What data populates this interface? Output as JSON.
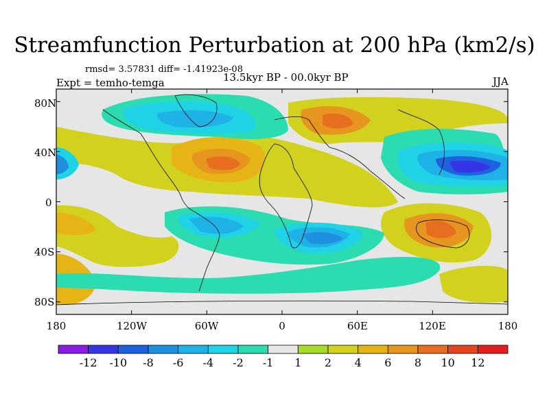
{
  "title": "Streamfunction Perturbation at 200 hPa (km2/s)",
  "stats": "rmsd= 3.57831 diff= -1.41923e-08",
  "experiment": "Expt = temho-temga",
  "period": "13.5kyr BP - 00.0kyr BP",
  "season": "JJA",
  "map": {
    "lat_ticks": [
      "80N",
      "40N",
      "0",
      "40S",
      "80S"
    ],
    "lon_ticks": [
      "180",
      "120W",
      "60W",
      "0",
      "60E",
      "120E",
      "180"
    ],
    "background_color": "#e6e6e6"
  },
  "colorbar": {
    "labels": [
      "-12",
      "-10",
      "-8",
      "-6",
      "-4",
      "-2",
      "-1",
      "1",
      "2",
      "4",
      "6",
      "8",
      "10",
      "12"
    ],
    "colors": [
      "#8a1be6",
      "#3535e6",
      "#1f62e0",
      "#1f8fe0",
      "#1fb2e6",
      "#1fd2e6",
      "#2bdcb0",
      "#e6e6e6",
      "#a6dc28",
      "#d2d21e",
      "#e6b414",
      "#e6961e",
      "#e66e1e",
      "#e6461e",
      "#e61e1e"
    ]
  },
  "chart_data": {
    "type": "heatmap",
    "title": "Streamfunction Perturbation at 200 hPa (km2/s)",
    "units": "km2/s",
    "projection": "cylindrical equidistant",
    "xlabel": "",
    "ylabel": "",
    "xlim": [
      -180,
      180
    ],
    "ylim": [
      -90,
      90
    ],
    "x_ticks": [
      -180,
      -120,
      -60,
      0,
      60,
      120,
      180
    ],
    "y_ticks": [
      80,
      40,
      0,
      -40,
      -80
    ],
    "contour_levels": [
      -12,
      -10,
      -8,
      -6,
      -4,
      -2,
      -1,
      1,
      2,
      4,
      6,
      8,
      10,
      12
    ],
    "rmsd": 3.57831,
    "diff": -1.41923e-08,
    "features": [
      {
        "region": "North Atlantic / Greenland",
        "sign": "negative",
        "approx_min": -6
      },
      {
        "region": "North Pacific (~35N, 160E)",
        "sign": "negative",
        "approx_min": -12
      },
      {
        "region": "North Atlantic subtropics / North Africa",
        "sign": "positive",
        "approx_max": 8
      },
      {
        "region": "Siberia / Northern Eurasia",
        "sign": "positive",
        "approx_max": 8
      },
      {
        "region": "Australia",
        "sign": "positive",
        "approx_max": 8
      },
      {
        "region": "South Atlantic / Southern Africa",
        "sign": "negative",
        "approx_min": -8
      },
      {
        "region": "Tropical South America",
        "sign": "negative",
        "approx_min": -6
      },
      {
        "region": "Eastern South Pacific",
        "sign": "positive",
        "approx_max": 6
      }
    ]
  }
}
